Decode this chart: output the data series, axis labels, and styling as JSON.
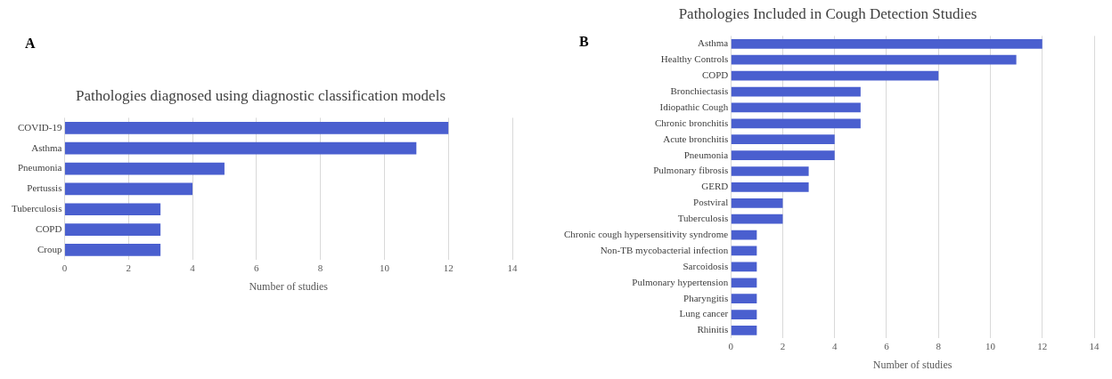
{
  "chart_data": [
    {
      "type": "bar",
      "orientation": "horizontal",
      "title": "Pathologies diagnosed using diagnostic classification models",
      "xlabel": "Number of studies",
      "annotations": [
        "A"
      ],
      "categories": [
        "COVID-19",
        "Asthma",
        "Pneumonia",
        "Pertussis",
        "Tuberculosis",
        "COPD",
        "Croup"
      ],
      "values": [
        12,
        11,
        5,
        4,
        3,
        3,
        3
      ],
      "color": "#4a5fcf",
      "xlim": [
        0,
        14
      ],
      "xticks": [
        0,
        2,
        4,
        6,
        8,
        10,
        12,
        14
      ],
      "grid": "x",
      "legend": false
    },
    {
      "type": "bar",
      "orientation": "horizontal",
      "title": "Pathologies Included in Cough Detection Studies",
      "xlabel": "Number of studies",
      "annotations": [
        "B"
      ],
      "categories": [
        "Asthma",
        "Healthy Controls",
        "COPD",
        "Bronchiectasis",
        "Idiopathic Cough",
        "Chronic bronchitis",
        "Acute bronchitis",
        "Pneumonia",
        "Pulmonary fibrosis",
        "GERD",
        "Postviral",
        "Tuberculosis",
        "Chronic cough hypersensitivity syndrome",
        "Non-TB mycobacterial infection",
        "Sarcoidosis",
        "Pulmonary hypertension",
        "Pharyngitis",
        "Lung cancer",
        "Rhinitis"
      ],
      "values": [
        12,
        11,
        8,
        5,
        5,
        5,
        4,
        4,
        3,
        3,
        2,
        2,
        1,
        1,
        1,
        1,
        1,
        1,
        1
      ],
      "color": "#4a5fcf",
      "xlim": [
        0,
        14
      ],
      "xticks": [
        0,
        2,
        4,
        6,
        8,
        10,
        12,
        14
      ],
      "grid": "x",
      "legend": false
    }
  ]
}
